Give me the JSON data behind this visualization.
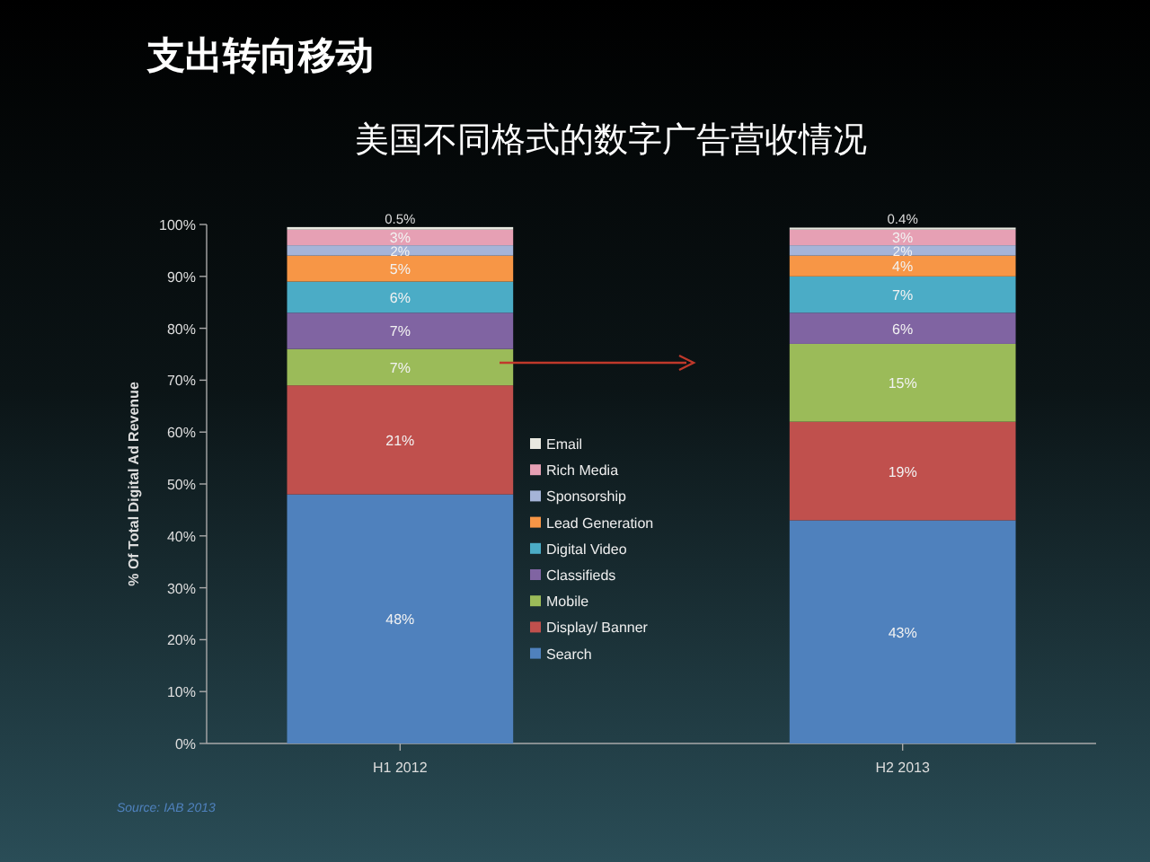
{
  "chart_data": {
    "type": "bar",
    "title": "支出转向移动",
    "subtitle": "美国不同格式的数字广告营收情况",
    "ylabel": "% Of Total Digital Ad Revenue",
    "categories": [
      "H1 2012",
      "H2 2013"
    ],
    "stacked": true,
    "legend": "center",
    "grid": false,
    "ylim": [
      0,
      100
    ],
    "yticks": [
      {
        "value": 0,
        "label": "0%"
      },
      {
        "value": 10,
        "label": "10%"
      },
      {
        "value": 20,
        "label": "20%"
      },
      {
        "value": 30,
        "label": "30%"
      },
      {
        "value": 40,
        "label": "40%"
      },
      {
        "value": 50,
        "label": "50%"
      },
      {
        "value": 60,
        "label": "60%"
      },
      {
        "value": 70,
        "label": "70%"
      },
      {
        "value": 80,
        "label": "80%"
      },
      {
        "value": 90,
        "label": "90%"
      },
      {
        "value": 100,
        "label": "100%"
      }
    ],
    "series": [
      {
        "name": "Search",
        "color": "#4f81bd",
        "values": [
          48,
          43
        ],
        "value_labels": [
          "48%",
          "43%"
        ]
      },
      {
        "name": "Display/ Banner",
        "color": "#c0504d",
        "values": [
          21,
          19
        ],
        "value_labels": [
          "21%",
          "19%"
        ]
      },
      {
        "name": "Mobile",
        "color": "#9bbb59",
        "values": [
          7,
          15
        ],
        "value_labels": [
          "7%",
          "15%"
        ]
      },
      {
        "name": "Classifieds",
        "color": "#8064a2",
        "values": [
          7,
          6
        ],
        "value_labels": [
          "7%",
          "6%"
        ]
      },
      {
        "name": "Digital Video",
        "color": "#4bacc6",
        "values": [
          6,
          7
        ],
        "value_labels": [
          "6%",
          "7%"
        ]
      },
      {
        "name": "Lead Generation",
        "color": "#f79646",
        "values": [
          5,
          4
        ],
        "value_labels": [
          "5%",
          "4%"
        ]
      },
      {
        "name": "Sponsorship",
        "color": "#a5b4d8",
        "values": [
          2,
          2
        ],
        "value_labels": [
          "2%",
          "2%"
        ]
      },
      {
        "name": "Rich Media",
        "color": "#e6a0b4",
        "values": [
          3,
          3
        ],
        "value_labels": [
          "3%",
          "3%"
        ]
      },
      {
        "name": "Email",
        "color": "#e8e8e0",
        "values": [
          0.5,
          0.4
        ],
        "value_labels": [
          "0.5%",
          "0.4%"
        ]
      }
    ],
    "annotations": [
      "Source: IAB 2013"
    ]
  }
}
